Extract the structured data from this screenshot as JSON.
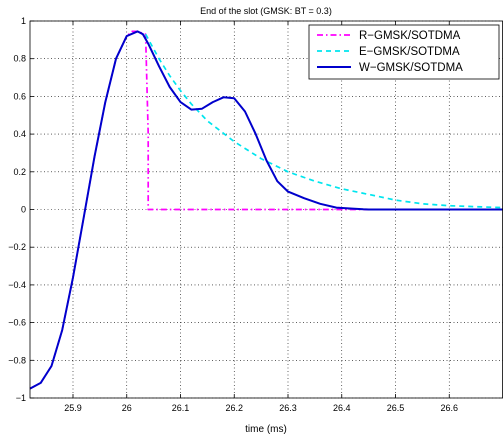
{
  "chart_data": {
    "type": "line",
    "title": "End of the slot (GMSK: BT = 0.3)",
    "xlabel": "time (ms)",
    "ylabel": "",
    "xlim": [
      25.82,
      26.7
    ],
    "ylim": [
      -1,
      1
    ],
    "xticks": [
      "25.9",
      "26",
      "26.1",
      "26.2",
      "26.3",
      "26.4",
      "26.5",
      "26.6"
    ],
    "yticks": [
      "1",
      "0.8",
      "0.6",
      "0.4",
      "0.2",
      "0",
      "−0.2",
      "−0.4",
      "−0.6",
      "−0.8",
      "−1"
    ],
    "grid": true,
    "legend": "top-right",
    "series": [
      {
        "name": "R−GMSK/SOTDMA",
        "color": "#ff00ff",
        "style": "dashdot",
        "x": [
          25.82,
          25.84,
          25.86,
          25.88,
          25.9,
          25.92,
          25.94,
          25.96,
          25.98,
          26.0,
          26.01,
          26.02,
          26.03,
          26.035,
          26.04,
          26.04,
          26.05,
          26.1,
          26.2,
          26.3,
          26.4,
          26.46
        ],
        "y": [
          -0.95,
          -0.92,
          -0.83,
          -0.64,
          -0.36,
          -0.04,
          0.28,
          0.57,
          0.8,
          0.92,
          0.945,
          0.945,
          0.935,
          0.93,
          0.4,
          0.0,
          0.0,
          0.0,
          0.0,
          0.0,
          0.0,
          0.0
        ]
      },
      {
        "name": "E−GMSK/SOTDMA",
        "color": "#00e5ee",
        "style": "dashed",
        "x": [
          26.035,
          26.06,
          26.08,
          26.1,
          26.12,
          26.15,
          26.2,
          26.25,
          26.3,
          26.35,
          26.4,
          26.45,
          26.5,
          26.55,
          26.6,
          26.65,
          26.7
        ],
        "y": [
          0.93,
          0.8,
          0.71,
          0.63,
          0.56,
          0.47,
          0.36,
          0.27,
          0.2,
          0.15,
          0.11,
          0.08,
          0.05,
          0.03,
          0.02,
          0.015,
          0.01
        ]
      },
      {
        "name": "W−GMSK/SOTDMA",
        "color": "#0000cc",
        "style": "solid",
        "x": [
          25.82,
          25.84,
          25.86,
          25.88,
          25.9,
          25.92,
          25.94,
          25.96,
          25.98,
          26.0,
          26.02,
          26.03,
          26.04,
          26.06,
          26.08,
          26.1,
          26.12,
          26.14,
          26.16,
          26.18,
          26.2,
          26.22,
          26.24,
          26.26,
          26.28,
          26.3,
          26.33,
          26.36,
          26.39,
          26.42,
          26.44,
          26.45,
          26.5,
          26.6,
          26.7
        ],
        "y": [
          -0.95,
          -0.92,
          -0.83,
          -0.64,
          -0.36,
          -0.04,
          0.28,
          0.57,
          0.8,
          0.92,
          0.945,
          0.93,
          0.88,
          0.76,
          0.65,
          0.57,
          0.53,
          0.535,
          0.57,
          0.595,
          0.59,
          0.52,
          0.4,
          0.26,
          0.15,
          0.095,
          0.06,
          0.03,
          0.01,
          0.005,
          0.001,
          0.0,
          0.0,
          0.0,
          0.0
        ]
      }
    ]
  }
}
